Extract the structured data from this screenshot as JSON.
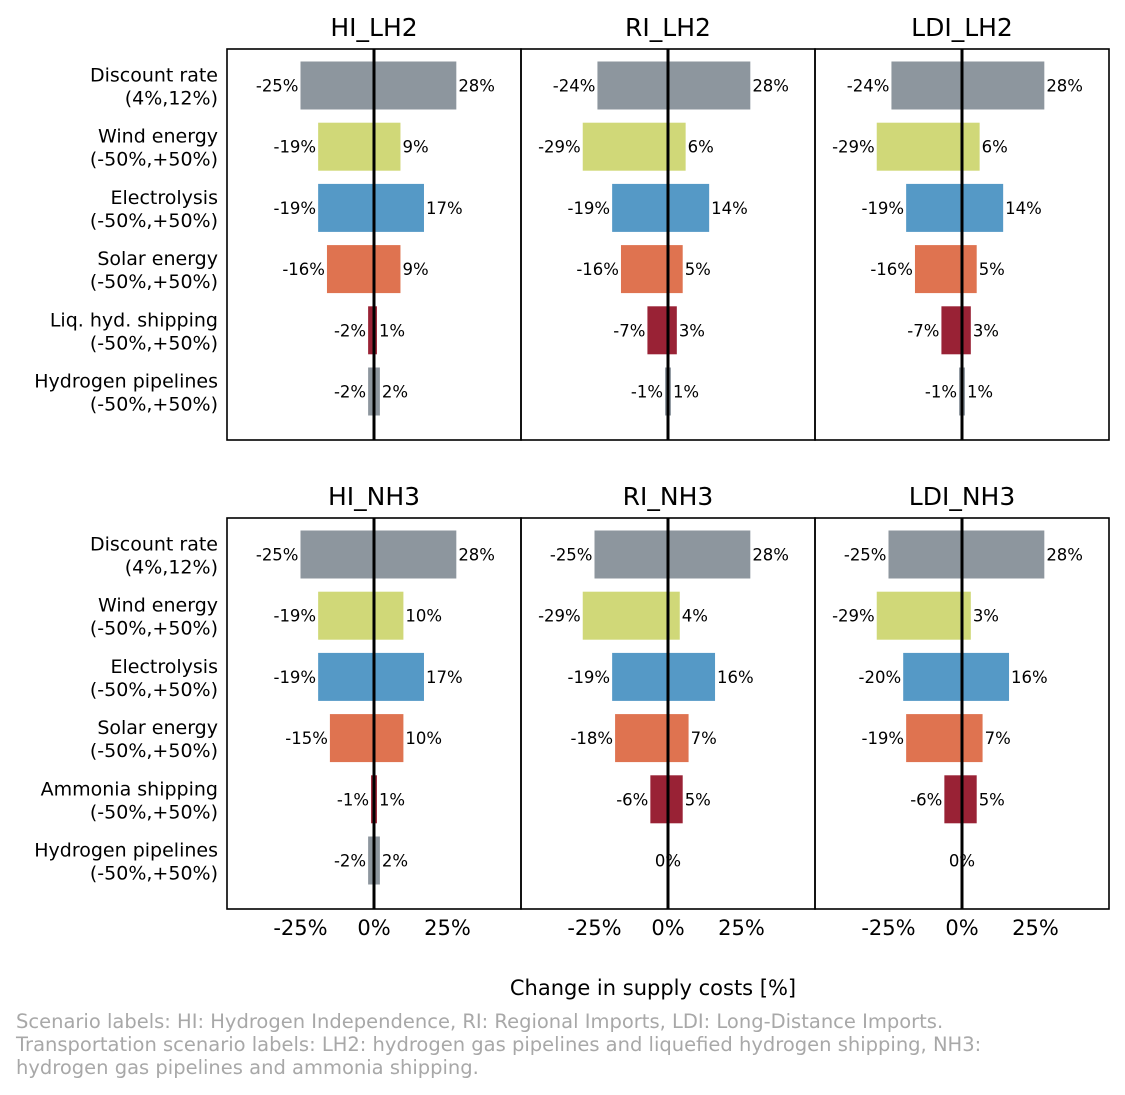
{
  "chart_data": {
    "type": "bar",
    "orientation": "horizontal",
    "xlabel": "Change in supply costs [%]",
    "x_ticks": [
      -25,
      0,
      25
    ],
    "x_tick_labels": [
      "-25%",
      "0%",
      "25%"
    ],
    "xlim": [
      -50,
      50
    ],
    "colors": {
      "Discount rate": "#8d969e",
      "Wind energy": "#d0d878",
      "Electrolysis": "#5599c6",
      "Solar energy": "#df7350",
      "Shipping": "#992235",
      "Hydrogen pipelines": "#8d969e"
    },
    "rows": [
      {
        "category_lines": [
          [
            "Discount rate",
            "(4%,12%)"
          ],
          [
            "Wind energy",
            "(-50%,+50%)"
          ],
          [
            "Electrolysis",
            "(-50%,+50%)"
          ],
          [
            "Solar energy",
            "(-50%,+50%)"
          ],
          [
            "Liq. hyd. shipping",
            "(-50%,+50%)"
          ],
          [
            "Hydrogen pipelines",
            "(-50%,+50%)"
          ]
        ],
        "panels": [
          {
            "title": "HI_LH2",
            "low": [
              -25,
              -19,
              -19,
              -16,
              -2,
              -2
            ],
            "high": [
              28,
              9,
              17,
              9,
              1,
              2
            ]
          },
          {
            "title": "RI_LH2",
            "low": [
              -24,
              -29,
              -19,
              -16,
              -7,
              -1
            ],
            "high": [
              28,
              6,
              14,
              5,
              3,
              1
            ]
          },
          {
            "title": "LDI_LH2",
            "low": [
              -24,
              -29,
              -19,
              -16,
              -7,
              -1
            ],
            "high": [
              28,
              6,
              14,
              5,
              3,
              1
            ]
          }
        ]
      },
      {
        "category_lines": [
          [
            "Discount rate",
            "(4%,12%)"
          ],
          [
            "Wind energy",
            "(-50%,+50%)"
          ],
          [
            "Electrolysis",
            "(-50%,+50%)"
          ],
          [
            "Solar energy",
            "(-50%,+50%)"
          ],
          [
            "Ammonia shipping",
            "(-50%,+50%)"
          ],
          [
            "Hydrogen pipelines",
            "(-50%,+50%)"
          ]
        ],
        "panels": [
          {
            "title": "HI_NH3",
            "low": [
              -25,
              -19,
              -19,
              -15,
              -1,
              -2
            ],
            "high": [
              28,
              10,
              17,
              10,
              1,
              2
            ]
          },
          {
            "title": "RI_NH3",
            "low": [
              -25,
              -29,
              -19,
              -18,
              -6,
              0
            ],
            "high": [
              28,
              4,
              16,
              7,
              5,
              0
            ]
          },
          {
            "title": "LDI_NH3",
            "low": [
              -25,
              -29,
              -20,
              -19,
              -6,
              0
            ],
            "high": [
              28,
              3,
              16,
              7,
              5,
              0
            ]
          }
        ]
      }
    ]
  },
  "caption": {
    "lines": [
      "Scenario labels: HI: Hydrogen Independence, RI: Regional Imports, LDI: Long-Distance Imports.",
      "Transportation scenario labels: LH2: hydrogen gas pipelines and liquefied hydrogen shipping, NH3:",
      "hydrogen gas pipelines and ammonia shipping."
    ]
  }
}
